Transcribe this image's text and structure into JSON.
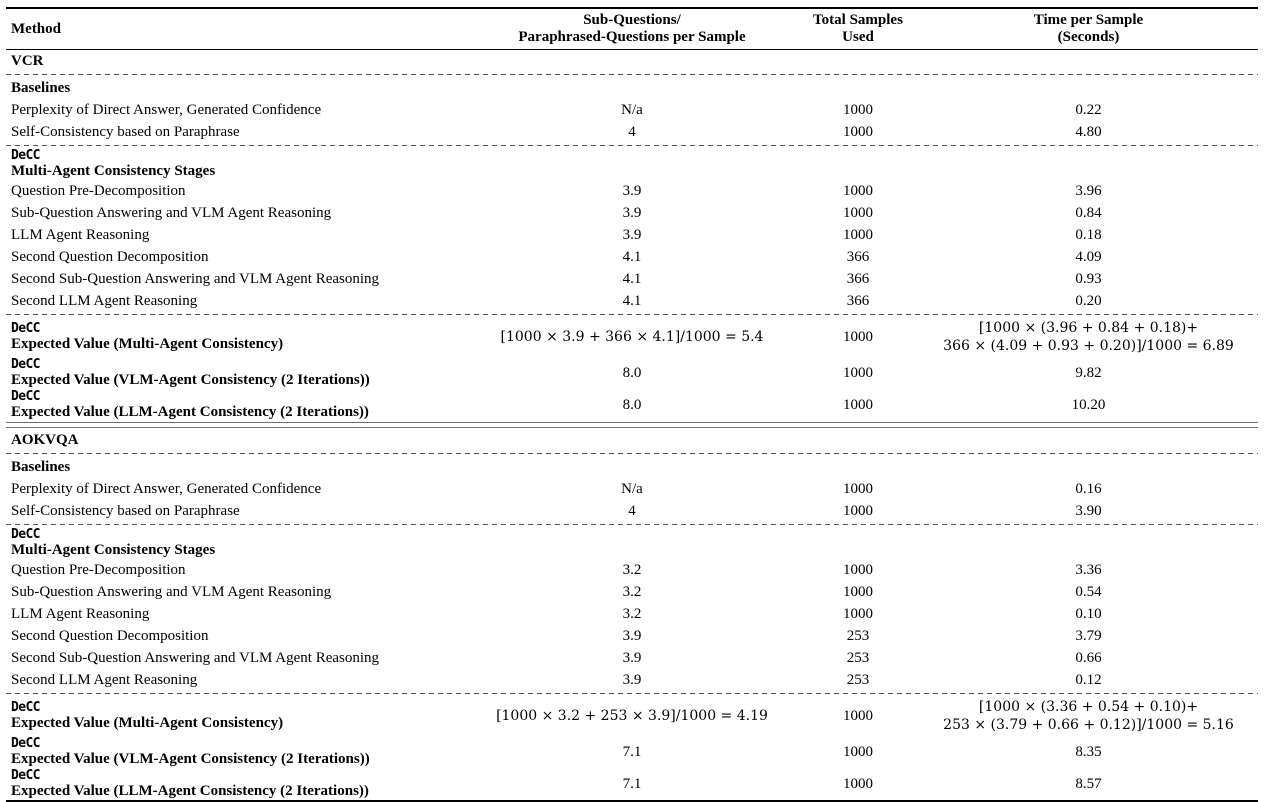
{
  "colors": {
    "text": "#000000",
    "solid_rule": "#000000",
    "dashed_rule": "#555555",
    "double_rule": "#6e6e6e"
  },
  "table": {
    "columns": [
      {
        "label": "Method"
      },
      {
        "lines": [
          "Sub-Questions/",
          "Paraphrased-Questions per Sample"
        ]
      },
      {
        "lines": [
          "Total Samples",
          "Used"
        ]
      },
      {
        "lines": [
          "Time per Sample",
          "(Seconds)"
        ]
      }
    ],
    "sections": [
      {
        "dataset": "VCR",
        "groups": [
          {
            "header": "Baselines",
            "rows": [
              {
                "method": "Perplexity of Direct Answer, Generated Confidence",
                "subq": "N/a",
                "samples": "1000",
                "time": "0.22"
              },
              {
                "method": "Self-Consistency based on Paraphrase",
                "subq": "4",
                "samples": "1000",
                "time": "4.80"
              }
            ]
          },
          {
            "mono": "DeCC",
            "header": "Multi-Agent Consistency Stages",
            "rows": [
              {
                "method": "Question Pre-Decomposition",
                "subq": "3.9",
                "samples": "1000",
                "time": "3.96"
              },
              {
                "method": "Sub-Question Answering and VLM Agent Reasoning",
                "subq": "3.9",
                "samples": "1000",
                "time": "0.84"
              },
              {
                "method": "LLM Agent Reasoning",
                "subq": "3.9",
                "samples": "1000",
                "time": "0.18"
              },
              {
                "method": "Second Question Decomposition",
                "subq": "4.1",
                "samples": "366",
                "time": "4.09"
              },
              {
                "method": "Second Sub-Question Answering and VLM Agent Reasoning",
                "subq": "4.1",
                "samples": "366",
                "time": "0.93"
              },
              {
                "method": "Second LLM Agent Reasoning",
                "subq": "4.1",
                "samples": "366",
                "time": "0.20"
              }
            ]
          },
          {
            "rows": [
              {
                "mono": "DeCC",
                "method": "Expected Value (Multi-Agent Consistency)",
                "bold": true,
                "subq": "[1000 × 3.9 + 366 × 4.1]/1000 = 5.4",
                "subq_math": true,
                "samples": "1000",
                "time_lines": [
                  "[1000 × (3.96 + 0.84 + 0.18)+",
                  "366 × (4.09 + 0.93 + 0.20)]/1000 = 6.89"
                ]
              },
              {
                "mono": "DeCC",
                "method": "Expected Value (VLM-Agent Consistency (2 Iterations))",
                "bold": true,
                "subq": "8.0",
                "samples": "1000",
                "time": "9.82"
              },
              {
                "mono": "DeCC",
                "method": "Expected Value (LLM-Agent Consistency (2 Iterations))",
                "bold": true,
                "subq": "8.0",
                "samples": "1000",
                "time": "10.20"
              }
            ]
          }
        ]
      },
      {
        "dataset": "AOKVQA",
        "groups": [
          {
            "header": "Baselines",
            "rows": [
              {
                "method": "Perplexity of Direct Answer, Generated Confidence",
                "subq": "N/a",
                "samples": "1000",
                "time": "0.16"
              },
              {
                "method": "Self-Consistency based on Paraphrase",
                "subq": "4",
                "samples": "1000",
                "time": "3.90"
              }
            ]
          },
          {
            "mono": "DeCC",
            "header": "Multi-Agent Consistency Stages",
            "rows": [
              {
                "method": "Question Pre-Decomposition",
                "subq": "3.2",
                "samples": "1000",
                "time": "3.36"
              },
              {
                "method": "Sub-Question Answering and VLM Agent Reasoning",
                "subq": "3.2",
                "samples": "1000",
                "time": "0.54"
              },
              {
                "method": "LLM Agent Reasoning",
                "subq": "3.2",
                "samples": "1000",
                "time": "0.10"
              },
              {
                "method": "Second Question Decomposition",
                "subq": "3.9",
                "samples": "253",
                "time": "3.79"
              },
              {
                "method": "Second Sub-Question Answering and VLM Agent Reasoning",
                "subq": "3.9",
                "samples": "253",
                "time": "0.66"
              },
              {
                "method": "Second LLM Agent Reasoning",
                "subq": "3.9",
                "samples": "253",
                "time": "0.12"
              }
            ]
          },
          {
            "rows": [
              {
                "mono": "DeCC",
                "method": "Expected Value (Multi-Agent Consistency)",
                "bold": true,
                "subq": "[1000 × 3.2 + 253 × 3.9]/1000 = 4.19",
                "subq_math": true,
                "samples": "1000",
                "time_lines": [
                  "[1000 × (3.36 + 0.54 + 0.10)+",
                  "253 × (3.79 + 0.66 + 0.12)]/1000 = 5.16"
                ]
              },
              {
                "mono": "DeCC",
                "method": "Expected Value (VLM-Agent Consistency (2 Iterations))",
                "bold": true,
                "subq": "7.1",
                "samples": "1000",
                "time": "8.35"
              },
              {
                "mono": "DeCC",
                "method": "Expected Value (LLM-Agent Consistency (2 Iterations))",
                "bold": true,
                "subq": "7.1",
                "samples": "1000",
                "time": "8.57"
              }
            ]
          }
        ]
      }
    ]
  }
}
